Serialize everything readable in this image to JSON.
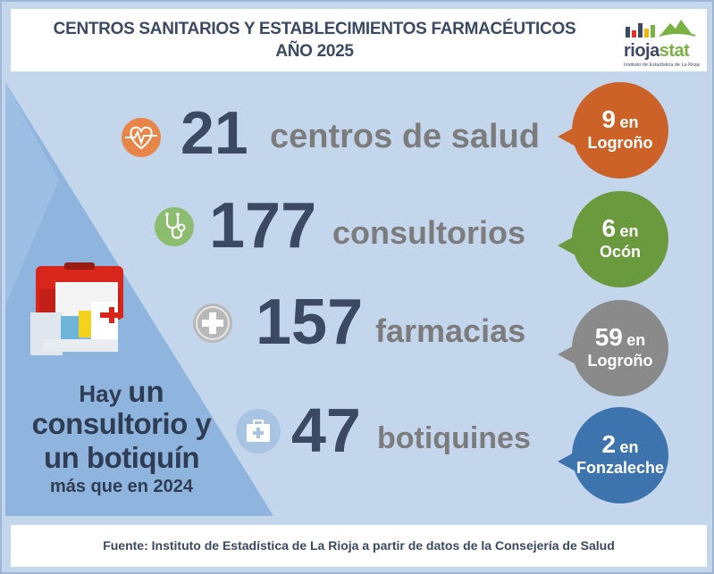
{
  "header": {
    "title_line1": "CENTROS SANITARIOS Y ESTABLECIMIENTOS FARMACÉUTICOS",
    "title_line2": "AÑO 2025",
    "logo_name": "rioja",
    "logo_name_highlight": "stat",
    "logo_subtitle": "Instituto de Estadística de La Rioja"
  },
  "stats": [
    {
      "value": "21",
      "label": "centros de salud",
      "icon": "heart-pulse-icon",
      "icon_color": "#e8864a",
      "bubble": {
        "value": "9",
        "en": "en",
        "place": "Logroño",
        "color": "#cc6228"
      }
    },
    {
      "value": "177",
      "label": "consultorios",
      "icon": "stethoscope-icon",
      "icon_color": "#8cbc6e",
      "bubble": {
        "value": "6",
        "en": "en",
        "place": "Ocón",
        "color": "#6b9a3e"
      }
    },
    {
      "value": "157",
      "label": "farmacias",
      "icon": "plus-cross-icon",
      "icon_color": "#b8b8b8",
      "bubble": {
        "value": "59",
        "en": "en",
        "place": "Logroño",
        "color": "#8a8a8a"
      }
    },
    {
      "value": "47",
      "label": "botiquines",
      "icon": "first-aid-kit-icon",
      "icon_color": "#a8c4e2",
      "bubble": {
        "value": "2",
        "en": "en",
        "place": "Fonzaleche",
        "color": "#3e74ad"
      }
    }
  ],
  "note": {
    "line1_a": "Hay",
    "line1_b": "un",
    "line2": "consultorio y",
    "line3": "un botiquín",
    "line4": "más que en 2024"
  },
  "footer": {
    "source": "Fuente: Instituto de Estadística de La Rioja a partir de datos de la Consejería de Salud"
  },
  "colors": {
    "background": "#c3d6ec",
    "wedge": "#8fb4de",
    "text_dark": "#3b4a62",
    "text_grey": "#7c7c7c"
  }
}
